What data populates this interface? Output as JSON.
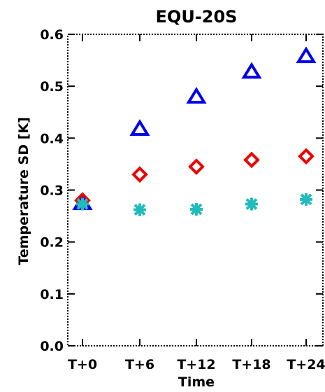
{
  "chart_data": {
    "type": "scatter",
    "title": "EQU-20S",
    "xlabel": "Time",
    "ylabel": "Temperature SD [K]",
    "categories": [
      "T+0",
      "T+6",
      "T+12",
      "T+18",
      "T+24"
    ],
    "ylim": [
      0.0,
      0.6
    ],
    "yticks": [
      "0.0",
      "0.1",
      "0.2",
      "0.3",
      "0.4",
      "0.5",
      "0.6"
    ],
    "grid": false,
    "series": [
      {
        "marker": "triangle",
        "color": "#0000ee",
        "values": [
          0.275,
          0.418,
          0.48,
          0.528,
          0.558
        ]
      },
      {
        "marker": "diamond",
        "color": "#ee0000",
        "values": [
          0.28,
          0.33,
          0.345,
          0.358,
          0.365
        ]
      },
      {
        "marker": "asterisk",
        "color": "#22bbbb",
        "values": [
          0.273,
          0.262,
          0.263,
          0.273,
          0.282
        ]
      }
    ]
  }
}
